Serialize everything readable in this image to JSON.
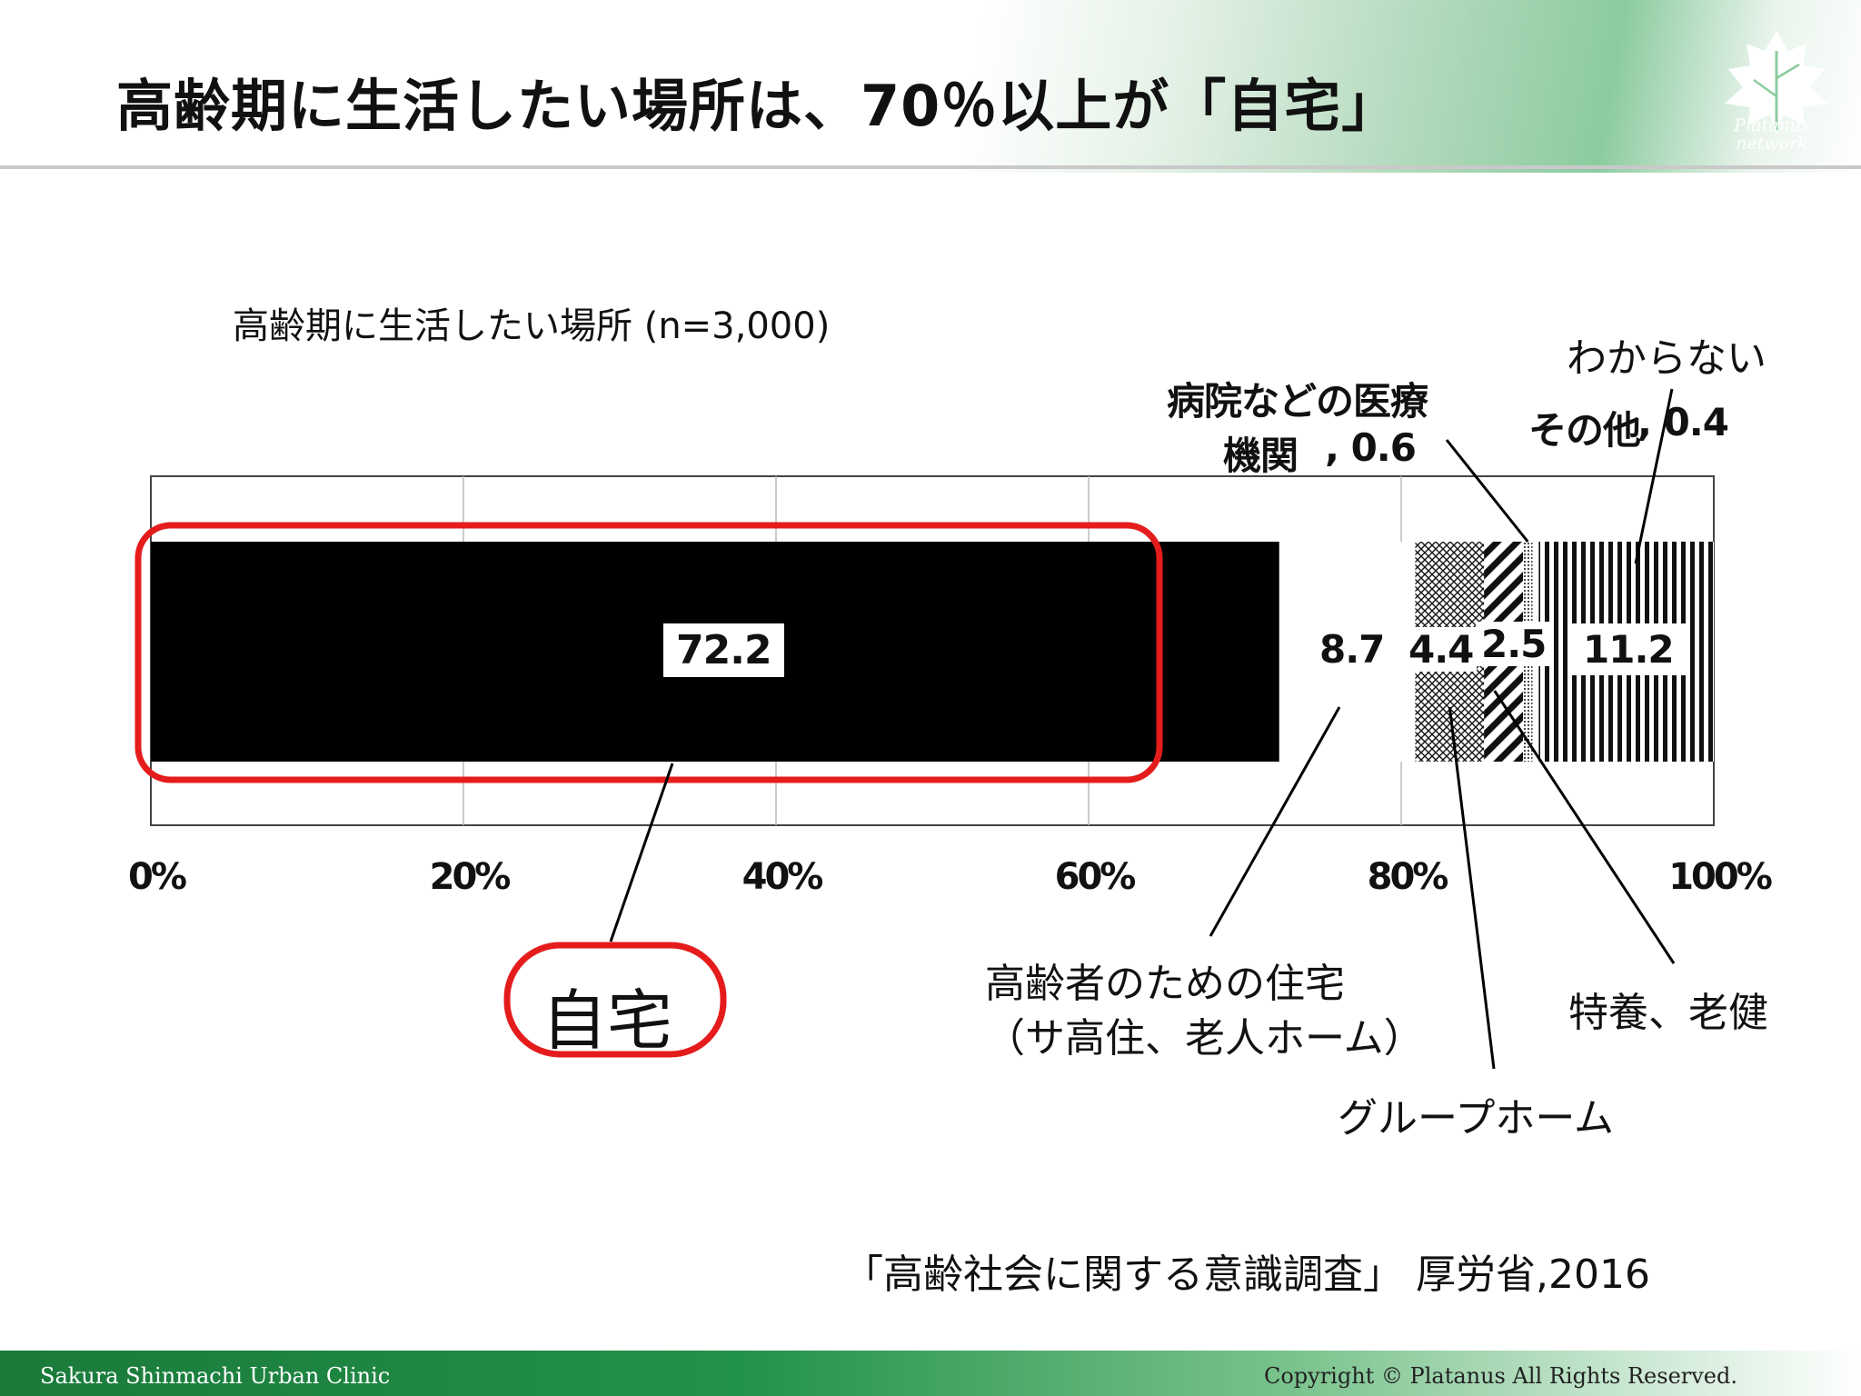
{
  "slide": {
    "title": "高齢期に生活したい場所は、70％以上が「自宅」",
    "logo_text_line1": "Platanus",
    "logo_text_line2": "network",
    "source": "「高齢社会に関する意識調査」 厚労省,2016",
    "footer_left": "Sakura Shinmachi Urban Clinic",
    "footer_right": "Copyright © Platanus All Rights Reserved."
  },
  "chart_data": {
    "type": "bar",
    "orientation": "horizontal-stacked",
    "title": "高齢期に生活したい場所 (n=3,000)",
    "xlim": [
      0,
      100
    ],
    "x_ticks": [
      "0%",
      "20%",
      "40%",
      "60%",
      "80%",
      "100%"
    ],
    "grid": true,
    "series": [
      {
        "name": "自宅",
        "value": 72.2,
        "value_label": "72.2",
        "pattern": "solid-black"
      },
      {
        "name": "高齢者のための住宅",
        "name_line2": "（サ高住、老人ホーム）",
        "value": 8.7,
        "value_label": "8.7",
        "pattern": "white"
      },
      {
        "name": "グループホーム",
        "value": 4.4,
        "value_label": "4.4",
        "pattern": "crosshatch"
      },
      {
        "name": "特養、老健",
        "value": 2.5,
        "value_label": "2.5",
        "pattern": "diagonal"
      },
      {
        "name": "病院などの医療",
        "name_line2": "機関",
        "value": 0.6,
        "value_label": ", 0.6",
        "pattern": "dots"
      },
      {
        "name": "その他",
        "value": 0.4,
        "value_label": ", 0.4",
        "pattern": "white"
      },
      {
        "name": "わからない",
        "value": 11.2,
        "value_label": "11.2",
        "pattern": "vertical-stripes"
      }
    ],
    "highlight_color": "#e51c1c"
  }
}
